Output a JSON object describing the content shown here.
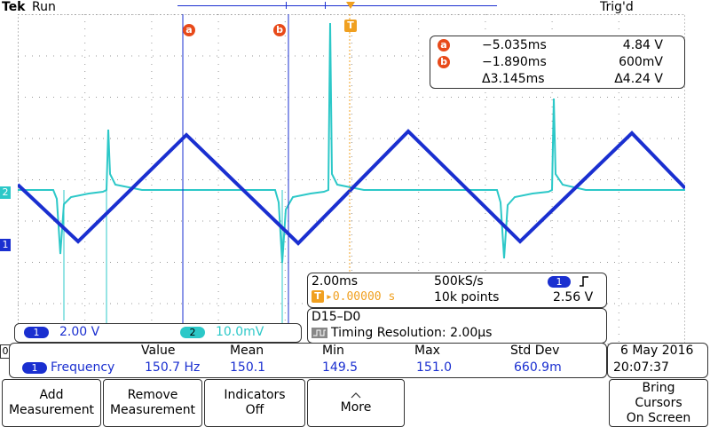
{
  "header": {
    "brand": "Tek",
    "run_state": "Run",
    "trigger_state": "Trig'd",
    "cursor_a_marker": "a",
    "cursor_b_marker": "b",
    "trigger_marker": "T"
  },
  "channel_markers": {
    "ch2": "2",
    "ch1": "1",
    "digital": "0"
  },
  "cursors": {
    "a": {
      "label": "a",
      "time": "−5.035ms",
      "voltage": "4.84 V"
    },
    "b": {
      "label": "b",
      "time": "−1.890ms",
      "voltage": "600mV"
    },
    "delta": {
      "time": "Δ3.145ms",
      "voltage": "Δ4.24 V"
    }
  },
  "acquisition": {
    "timebase": "2.00ms",
    "sample_rate": "500kS/s",
    "trigger_channel": "1",
    "trigger_slope_icon": "rising-edge-icon",
    "trigger_position_label": "T",
    "trigger_position": "▸0.00000 s",
    "record_length": "10k points",
    "trigger_level": "2.56 V"
  },
  "logic": {
    "bus": "D15–D0",
    "timing_resolution": "Timing Resolution: 2.00µs"
  },
  "channels": [
    {
      "id": "1",
      "scale": "2.00 V",
      "color": "#1a2fd0"
    },
    {
      "id": "2",
      "scale": "10.0mV",
      "color": "#2cc8c8"
    }
  ],
  "measurements": {
    "headers": [
      "Value",
      "Mean",
      "Min",
      "Max",
      "Std Dev"
    ],
    "row": {
      "channel": "1",
      "name": "Frequency",
      "values": [
        "150.7 Hz",
        "150.1",
        "149.5",
        "151.0",
        "660.9m"
      ]
    }
  },
  "datetime": {
    "date": "6 May 2016",
    "time": "20:07:37"
  },
  "softkeys": [
    {
      "line1": "Add",
      "line2": "Measurement"
    },
    {
      "line1": "Remove",
      "line2": "Measurement"
    },
    {
      "line1": "Indicators",
      "line2": "Off"
    },
    {
      "line1": "More",
      "line2": ""
    },
    {
      "line1": "Bring",
      "line2": "Cursors",
      "line3": "On Screen"
    }
  ],
  "colors": {
    "ch1": "#1a2fd0",
    "ch2": "#2cc8c8",
    "cursor": "#1a2fd0",
    "trigger": "#f0a020",
    "cursor_marker": "#e84a1a"
  }
}
